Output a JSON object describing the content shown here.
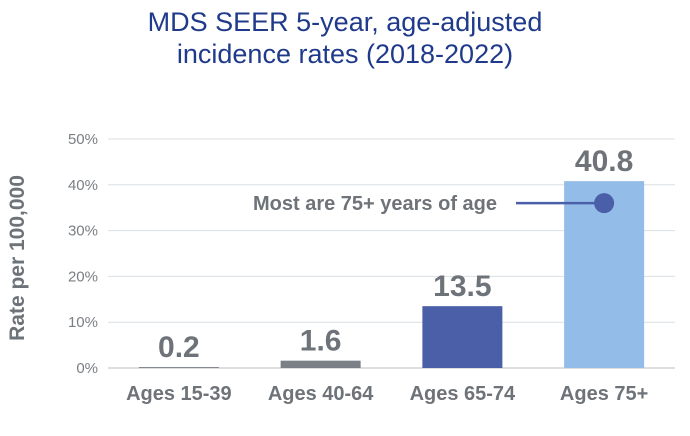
{
  "chart_data": {
    "type": "bar",
    "title_lines": [
      "MDS SEER 5-year, age-adjusted",
      "incidence rates (2018-2022)"
    ],
    "xlabel": "",
    "ylabel": "Rate per 100,000",
    "ylim": [
      0,
      50
    ],
    "y_ticks": [
      "0%",
      "10%",
      "20%",
      "30%",
      "40%",
      "50%"
    ],
    "categories": [
      "Ages 15-39",
      "Ages 40-64",
      "Ages 65-74",
      "Ages 75+"
    ],
    "values": [
      0.2,
      1.6,
      13.5,
      40.8
    ],
    "value_labels": [
      "0.2",
      "1.6",
      "13.5",
      "40.8"
    ],
    "bar_colors": [
      "#7a8086",
      "#7a8086",
      "#4a5fa8",
      "#93bde8"
    ],
    "grid": true,
    "annotation": {
      "text": "Most are 75+ years of age",
      "category": "Ages 75+",
      "value": 40.8,
      "marker_color": "#4a5fa8"
    }
  }
}
